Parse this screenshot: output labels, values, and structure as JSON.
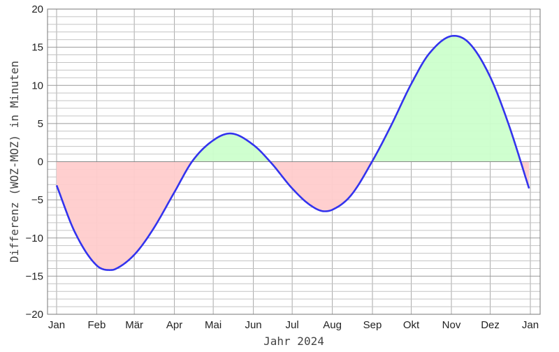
{
  "chart_data": {
    "type": "area",
    "title": "",
    "xlabel": "Jahr 2024",
    "ylabel": "Differenz (WOZ-MOZ) in Minuten",
    "ylim": [
      -20,
      20
    ],
    "yticks": [
      -20,
      -15,
      -10,
      -5,
      0,
      5,
      10,
      15,
      20
    ],
    "xtick_labels": [
      "Jan",
      "Feb",
      "Mär",
      "Apr",
      "Mai",
      "Jun",
      "Jul",
      "Aug",
      "Sep",
      "Okt",
      "Nov",
      "Dez",
      "Jan"
    ],
    "grid": true,
    "colors": {
      "line": "#3333ee",
      "positive_fill": "#ccffcc",
      "negative_fill": "#ffcccc",
      "grid": "#aaaaaa"
    },
    "series": [
      {
        "x": [
          "2024-01-01",
          "2024-01-15",
          "2024-02-01",
          "2024-02-11",
          "2024-02-15",
          "2024-03-01",
          "2024-03-15",
          "2024-04-01",
          "2024-04-15",
          "2024-05-01",
          "2024-05-14",
          "2024-06-01",
          "2024-06-15",
          "2024-07-01",
          "2024-07-15",
          "2024-07-26",
          "2024-08-01",
          "2024-08-15",
          "2024-09-01",
          "2024-09-15",
          "2024-10-01",
          "2024-10-15",
          "2024-11-03",
          "2024-11-15",
          "2024-12-01",
          "2024-12-15",
          "2024-12-31"
        ],
        "y": [
          -3.1,
          -9.2,
          -13.6,
          -14.2,
          -14.1,
          -12.2,
          -9.0,
          -4.0,
          0.1,
          2.8,
          3.7,
          2.2,
          -0.2,
          -3.5,
          -5.7,
          -6.5,
          -6.3,
          -4.5,
          0.1,
          4.6,
          10.2,
          14.2,
          16.5,
          15.5,
          11.1,
          5.0,
          -3.5
        ]
      }
    ]
  }
}
